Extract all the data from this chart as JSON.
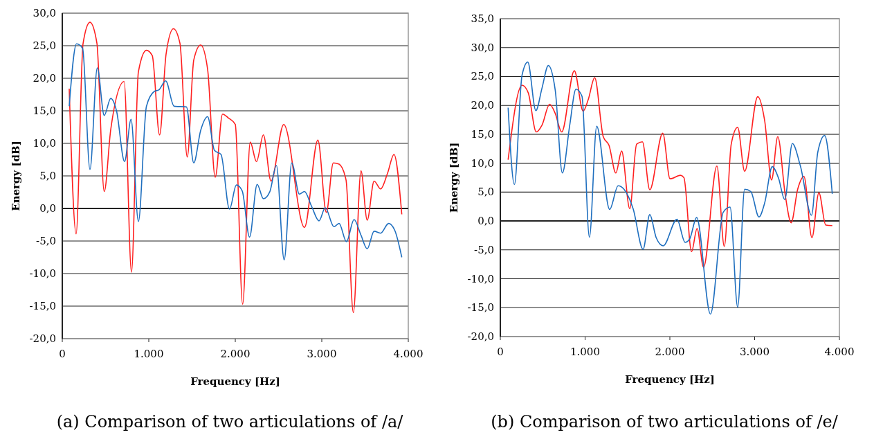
{
  "chart_data": [
    {
      "type": "line",
      "title": "(a) Comparison of two articulations of  /a/",
      "xlabel": "Frequency [Hz]",
      "ylabel": "Energy [dB]",
      "xlim": [
        0,
        4000
      ],
      "ylim": [
        -20,
        30
      ],
      "xticks": [
        0,
        {
          "value": 1000,
          "label": "1.000"
        },
        {
          "value": 2000,
          "label": "2.000"
        },
        {
          "value": 3000,
          "label": "3.000"
        },
        {
          "value": 4000,
          "label": "4.000"
        }
      ],
      "yticks": [
        {
          "value": -20,
          "label": "-20,0"
        },
        {
          "value": -15,
          "label": "-15,0"
        },
        {
          "value": -10,
          "label": "-10,0"
        },
        {
          "value": -5,
          "label": "-5,0"
        },
        {
          "value": 0,
          "label": "0,0"
        },
        {
          "value": 5,
          "label": "5,0"
        },
        {
          "value": 10,
          "label": "10,0"
        },
        {
          "value": 15,
          "label": "15,0"
        },
        {
          "value": 20,
          "label": "20,0"
        },
        {
          "value": 25,
          "label": "25,0"
        },
        {
          "value": 30,
          "label": "30,0"
        }
      ],
      "grid": "y",
      "marker": "none",
      "line_style": "solid",
      "series": [
        {
          "color": "#ff2020",
          "x": [
            80,
            160,
            240,
            320,
            400,
            485,
            560,
            715,
            800,
            880,
            973,
            1040,
            1125,
            1200,
            1285,
            1360,
            1445,
            1520,
            1600,
            1680,
            1768,
            1853,
            1920,
            2000,
            2085,
            2173,
            2245,
            2325,
            2413,
            2560,
            2800,
            2955,
            3053,
            3133,
            3200,
            3280,
            3365,
            3453,
            3525,
            3605,
            3680,
            3760,
            3835,
            3925
          ],
          "values": [
            18.4,
            -3.9,
            25.3,
            28.6,
            25.4,
            2.6,
            12.1,
            19.5,
            -9.8,
            21.0,
            24.3,
            23.5,
            11.3,
            23.7,
            27.6,
            25.4,
            7.9,
            22.8,
            25.1,
            21.4,
            4.8,
            14.5,
            13.9,
            12.9,
            -14.7,
            10.2,
            7.2,
            11.3,
            4.2,
            12.9,
            -2.9,
            10.5,
            -0.6,
            7.0,
            6.8,
            4.4,
            -16.0,
            5.8,
            -1.8,
            4.2,
            3.0,
            5.4,
            8.3,
            -0.9
          ]
        },
        {
          "color": "#1f6fbf",
          "x": [
            80,
            165,
            235,
            320,
            405,
            485,
            560,
            627,
            720,
            795,
            880,
            973,
            1067,
            1115,
            1195,
            1293,
            1435,
            1520,
            1600,
            1680,
            1760,
            1835,
            1933,
            2013,
            2080,
            2165,
            2253,
            2325,
            2400,
            2475,
            2565,
            2653,
            2741,
            2800,
            2880,
            2968,
            3040,
            3141,
            3200,
            3285,
            3373,
            3453,
            3525,
            3605,
            3680,
            3773,
            3845,
            3925
          ],
          "values": [
            15.7,
            25.3,
            24.6,
            6.0,
            21.6,
            14.3,
            16.9,
            15.0,
            7.2,
            13.7,
            -2.0,
            15.7,
            18.0,
            18.2,
            19.6,
            15.7,
            15.6,
            7.0,
            12.0,
            14.1,
            8.9,
            8.3,
            -0.1,
            3.6,
            2.7,
            -4.4,
            3.7,
            1.5,
            2.6,
            6.6,
            -7.9,
            7.0,
            2.2,
            2.6,
            0.4,
            -1.9,
            0.1,
            -2.8,
            -2.3,
            -5.1,
            -1.7,
            -4.1,
            -6.2,
            -3.5,
            -3.8,
            -2.3,
            -3.4,
            -7.5
          ]
        }
      ]
    },
    {
      "type": "line",
      "title": "(b) Comparison of two articulations of  /e/",
      "xlabel": "Frequency [Hz]",
      "ylabel": "Energy [dB]",
      "xlim": [
        0,
        4000
      ],
      "ylim": [
        -20,
        35
      ],
      "xticks": [
        0,
        {
          "value": 1000,
          "label": "1.000"
        },
        {
          "value": 2000,
          "label": "2.000"
        },
        {
          "value": 3000,
          "label": "3.000"
        },
        {
          "value": 4000,
          "label": "4.000"
        }
      ],
      "yticks": [
        {
          "value": -20,
          "label": "-20,0"
        },
        {
          "value": -15,
          "label": "-15,0"
        },
        {
          "value": -10,
          "label": "-10,0"
        },
        {
          "value": -5,
          "label": "-5,0"
        },
        {
          "value": 0,
          "label": "0,0"
        },
        {
          "value": 5,
          "label": "5,0"
        },
        {
          "value": 10,
          "label": "10,0"
        },
        {
          "value": 15,
          "label": "15,0"
        },
        {
          "value": 20,
          "label": "20,0"
        },
        {
          "value": 25,
          "label": "25,0"
        },
        {
          "value": 30,
          "label": "30,0"
        },
        {
          "value": 35,
          "label": "35,0"
        }
      ],
      "grid": "y",
      "marker": "none",
      "line_style": "solid",
      "series": [
        {
          "color": "#ff2020",
          "x": [
            92,
            256,
            329,
            424,
            492,
            582,
            648,
            724,
            873,
            977,
            1037,
            1113,
            1214,
            1282,
            1363,
            1431,
            1527,
            1608,
            1676,
            1763,
            1916,
            2002,
            2125,
            2166,
            2256,
            2321,
            2397,
            2555,
            2642,
            2724,
            2800,
            2882,
            3037,
            3118,
            3200,
            3273,
            3363,
            3431,
            3508,
            3582,
            3676,
            3758,
            3839,
            3916
          ],
          "values": [
            10.6,
            23.5,
            22.2,
            15.4,
            16.6,
            20.2,
            18.6,
            15.4,
            26.0,
            19.0,
            21.0,
            24.8,
            14.6,
            13.1,
            8.3,
            12.1,
            2.1,
            13.3,
            13.7,
            5.4,
            15.2,
            7.3,
            7.9,
            7.5,
            -5.3,
            -1.3,
            -8.0,
            9.5,
            -4.4,
            13.3,
            16.2,
            8.6,
            21.5,
            17.4,
            7.1,
            14.6,
            4.3,
            -0.3,
            5.5,
            7.7,
            -2.9,
            4.9,
            -0.7,
            -0.8
          ]
        },
        {
          "color": "#1f6fbf",
          "x": [
            92,
            166,
            256,
            324,
            419,
            492,
            566,
            648,
            732,
            819,
            892,
            963,
            1051,
            1137,
            1290,
            1390,
            1459,
            1567,
            1684,
            1763,
            1839,
            1921,
            2084,
            2180,
            2234,
            2316,
            2479,
            2629,
            2710,
            2800,
            2882,
            2955,
            3051,
            3118,
            3208,
            3282,
            3355,
            3445,
            3540,
            3671,
            3745,
            3826,
            3916
          ],
          "values": [
            19.6,
            6.3,
            25.2,
            27.5,
            19.1,
            23.0,
            26.9,
            22.6,
            8.3,
            16.6,
            22.8,
            21.6,
            -2.8,
            16.4,
            2.0,
            6.1,
            5.5,
            2.1,
            -4.9,
            1.1,
            -2.9,
            -4.3,
            0.3,
            -3.7,
            -3.1,
            0.6,
            -16.1,
            1.5,
            2.4,
            -14.9,
            5.5,
            5.1,
            0.7,
            3.1,
            9.4,
            7.4,
            3.7,
            13.4,
            9.5,
            1.0,
            11.9,
            14.8,
            4.7
          ]
        }
      ]
    }
  ]
}
